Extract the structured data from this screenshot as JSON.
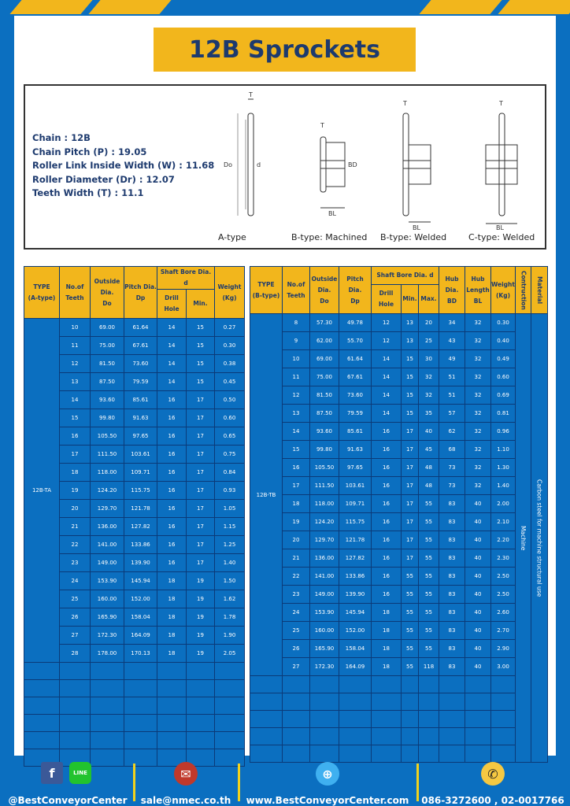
{
  "title": "12B Sprockets",
  "specs": [
    "Chain  :  12B",
    "Chain Pitch (P)  :  19.05",
    "Roller Link Inside Width (W) : 11.68",
    "Roller Diameter (Dr)  : 12.07",
    "Teeth Width (T)  :  11.1"
  ],
  "diagram_captions": [
    "A-type",
    "B-type: Machined",
    "B-type: Welded",
    "C-type: Welded"
  ],
  "diagram_labels": {
    "t": "T",
    "do": "Do",
    "dp": "Dp",
    "d": "d",
    "bd": "BD",
    "bl": "BL"
  },
  "colors": {
    "blue": "#0b6fc0",
    "yellow": "#f2b61c",
    "navy": "#1d3a6e"
  },
  "table_a": {
    "headers": {
      "type": "TYPE",
      "type2": "(A-type)",
      "teeth": "No.of",
      "teeth2": "Teeth",
      "od": "Outside",
      "od2": "Dia.",
      "od3": "Do",
      "dp": "Pitch Dia.",
      "dp2": "Dp",
      "shaft": "Shaft Bore Dia. d",
      "drill": "Drill Hole",
      "min": "Min.",
      "weight": "Weight",
      "weight2": "(Kg)"
    },
    "type_label": "12B-TA",
    "rows": [
      [
        "10",
        "69.00",
        "61.64",
        "14",
        "15",
        "0.27"
      ],
      [
        "11",
        "75.00",
        "67.61",
        "14",
        "15",
        "0.30"
      ],
      [
        "12",
        "81.50",
        "73.60",
        "14",
        "15",
        "0.38"
      ],
      [
        "13",
        "87.50",
        "79.59",
        "14",
        "15",
        "0.45"
      ],
      [
        "14",
        "93.60",
        "85.61",
        "16",
        "17",
        "0.50"
      ],
      [
        "15",
        "99.80",
        "91.63",
        "16",
        "17",
        "0.60"
      ],
      [
        "16",
        "105.50",
        "97.65",
        "16",
        "17",
        "0.65"
      ],
      [
        "17",
        "111.50",
        "103.61",
        "16",
        "17",
        "0.75"
      ],
      [
        "18",
        "118.00",
        "109.71",
        "16",
        "17",
        "0.84"
      ],
      [
        "19",
        "124.20",
        "115.75",
        "16",
        "17",
        "0.93"
      ],
      [
        "20",
        "129.70",
        "121.78",
        "16",
        "17",
        "1.05"
      ],
      [
        "21",
        "136.00",
        "127.82",
        "16",
        "17",
        "1.15"
      ],
      [
        "22",
        "141.00",
        "133.86",
        "16",
        "17",
        "1.25"
      ],
      [
        "23",
        "149.00",
        "139.90",
        "16",
        "17",
        "1.40"
      ],
      [
        "24",
        "153.90",
        "145.94",
        "18",
        "19",
        "1.50"
      ],
      [
        "25",
        "160.00",
        "152.00",
        "18",
        "19",
        "1.62"
      ],
      [
        "26",
        "165.90",
        "158.04",
        "18",
        "19",
        "1.78"
      ],
      [
        "27",
        "172.30",
        "164.09",
        "18",
        "19",
        "1.90"
      ],
      [
        "28",
        "178.00",
        "170.13",
        "18",
        "19",
        "2.05"
      ]
    ]
  },
  "table_b": {
    "headers": {
      "type": "TYPE",
      "type2": "(B-type)",
      "teeth": "No.of",
      "teeth2": "Teeth",
      "od": "Outside",
      "od2": "Dia.",
      "od3": "Do",
      "dp": "Pitch Dia.",
      "dp2": "Dp",
      "shaft": "Shaft Bore Dia. d",
      "drill": "Drill Hole",
      "min": "Min.",
      "max": "Max.",
      "hub": "Hub Dia.",
      "hub2": "BD",
      "hubl": "Hub",
      "hubl2": "Length",
      "hubl3": "BL",
      "weight": "Weight",
      "weight2": "(Kg)",
      "construction": "Contruction",
      "material": "Material"
    },
    "type_label": "12B-TB",
    "construction": "Machine",
    "material": "Carbon steel for machine structural use",
    "rows": [
      [
        "8",
        "57.30",
        "49.78",
        "12",
        "13",
        "20",
        "34",
        "32",
        "0.30"
      ],
      [
        "9",
        "62.00",
        "55.70",
        "12",
        "13",
        "25",
        "43",
        "32",
        "0.40"
      ],
      [
        "10",
        "69.00",
        "61.64",
        "14",
        "15",
        "30",
        "49",
        "32",
        "0.49"
      ],
      [
        "11",
        "75.00",
        "67.61",
        "14",
        "15",
        "32",
        "51",
        "32",
        "0.60"
      ],
      [
        "12",
        "81.50",
        "73.60",
        "14",
        "15",
        "32",
        "51",
        "32",
        "0.69"
      ],
      [
        "13",
        "87.50",
        "79.59",
        "14",
        "15",
        "35",
        "57",
        "32",
        "0.81"
      ],
      [
        "14",
        "93.60",
        "85.61",
        "16",
        "17",
        "40",
        "62",
        "32",
        "0.96"
      ],
      [
        "15",
        "99.80",
        "91.63",
        "16",
        "17",
        "45",
        "68",
        "32",
        "1.10"
      ],
      [
        "16",
        "105.50",
        "97.65",
        "16",
        "17",
        "48",
        "73",
        "32",
        "1.30"
      ],
      [
        "17",
        "111.50",
        "103.61",
        "16",
        "17",
        "48",
        "73",
        "32",
        "1.40"
      ],
      [
        "18",
        "118.00",
        "109.71",
        "16",
        "17",
        "55",
        "83",
        "40",
        "2.00"
      ],
      [
        "19",
        "124.20",
        "115.75",
        "16",
        "17",
        "55",
        "83",
        "40",
        "2.10"
      ],
      [
        "20",
        "129.70",
        "121.78",
        "16",
        "17",
        "55",
        "83",
        "40",
        "2.20"
      ],
      [
        "21",
        "136.00",
        "127.82",
        "16",
        "17",
        "55",
        "83",
        "40",
        "2.30"
      ],
      [
        "22",
        "141.00",
        "133.86",
        "16",
        "55",
        "55",
        "83",
        "40",
        "2.50"
      ],
      [
        "23",
        "149.00",
        "139.90",
        "16",
        "55",
        "55",
        "83",
        "40",
        "2.50"
      ],
      [
        "24",
        "153.90",
        "145.94",
        "18",
        "55",
        "55",
        "83",
        "40",
        "2.60"
      ],
      [
        "25",
        "160.00",
        "152.00",
        "18",
        "55",
        "55",
        "83",
        "40",
        "2.70"
      ],
      [
        "26",
        "165.90",
        "158.04",
        "18",
        "55",
        "55",
        "83",
        "40",
        "2.90"
      ],
      [
        "27",
        "172.30",
        "164.09",
        "18",
        "55",
        "118",
        "83",
        "40",
        "3.00"
      ]
    ]
  },
  "footer": {
    "social": "@BestConveyorCenter",
    "line_label": "LINE",
    "email": "sale@nmec.co.th",
    "website": "www.BestConveyorCenter.com",
    "phone": "086-3272600 , 02-0017766"
  }
}
